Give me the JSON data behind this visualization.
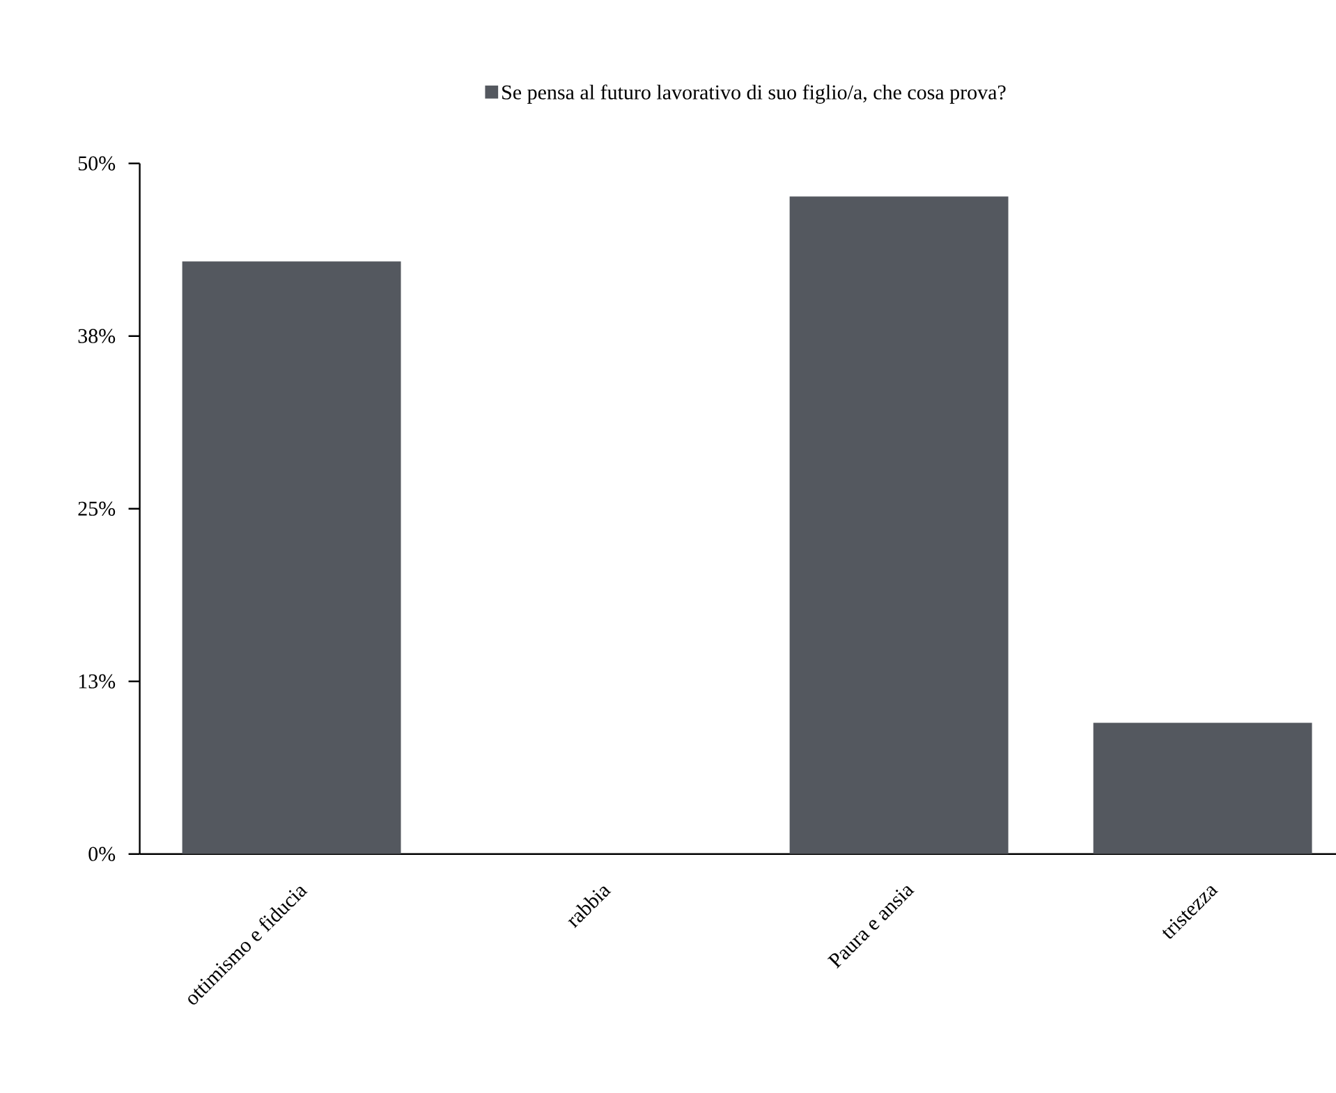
{
  "chart_data": {
    "type": "bar",
    "categories": [
      "ottimismo e fiducia",
      "rabbia",
      "Paura e ansia",
      "tristezza"
    ],
    "series": [
      {
        "name": "Se pensa al futuro lavorativo di suo figlio/a, che cosa prova?",
        "color": "#54585f",
        "values": [
          42.9,
          0,
          47.6,
          9.5
        ]
      }
    ],
    "ylim": [
      0,
      50
    ],
    "yticks": [
      {
        "value": 0,
        "label": "0%"
      },
      {
        "value": 12.5,
        "label": "13%"
      },
      {
        "value": 25,
        "label": "25%"
      },
      {
        "value": 37.5,
        "label": "38%"
      },
      {
        "value": 50,
        "label": "50%"
      }
    ],
    "grid": false,
    "legend": "top"
  }
}
